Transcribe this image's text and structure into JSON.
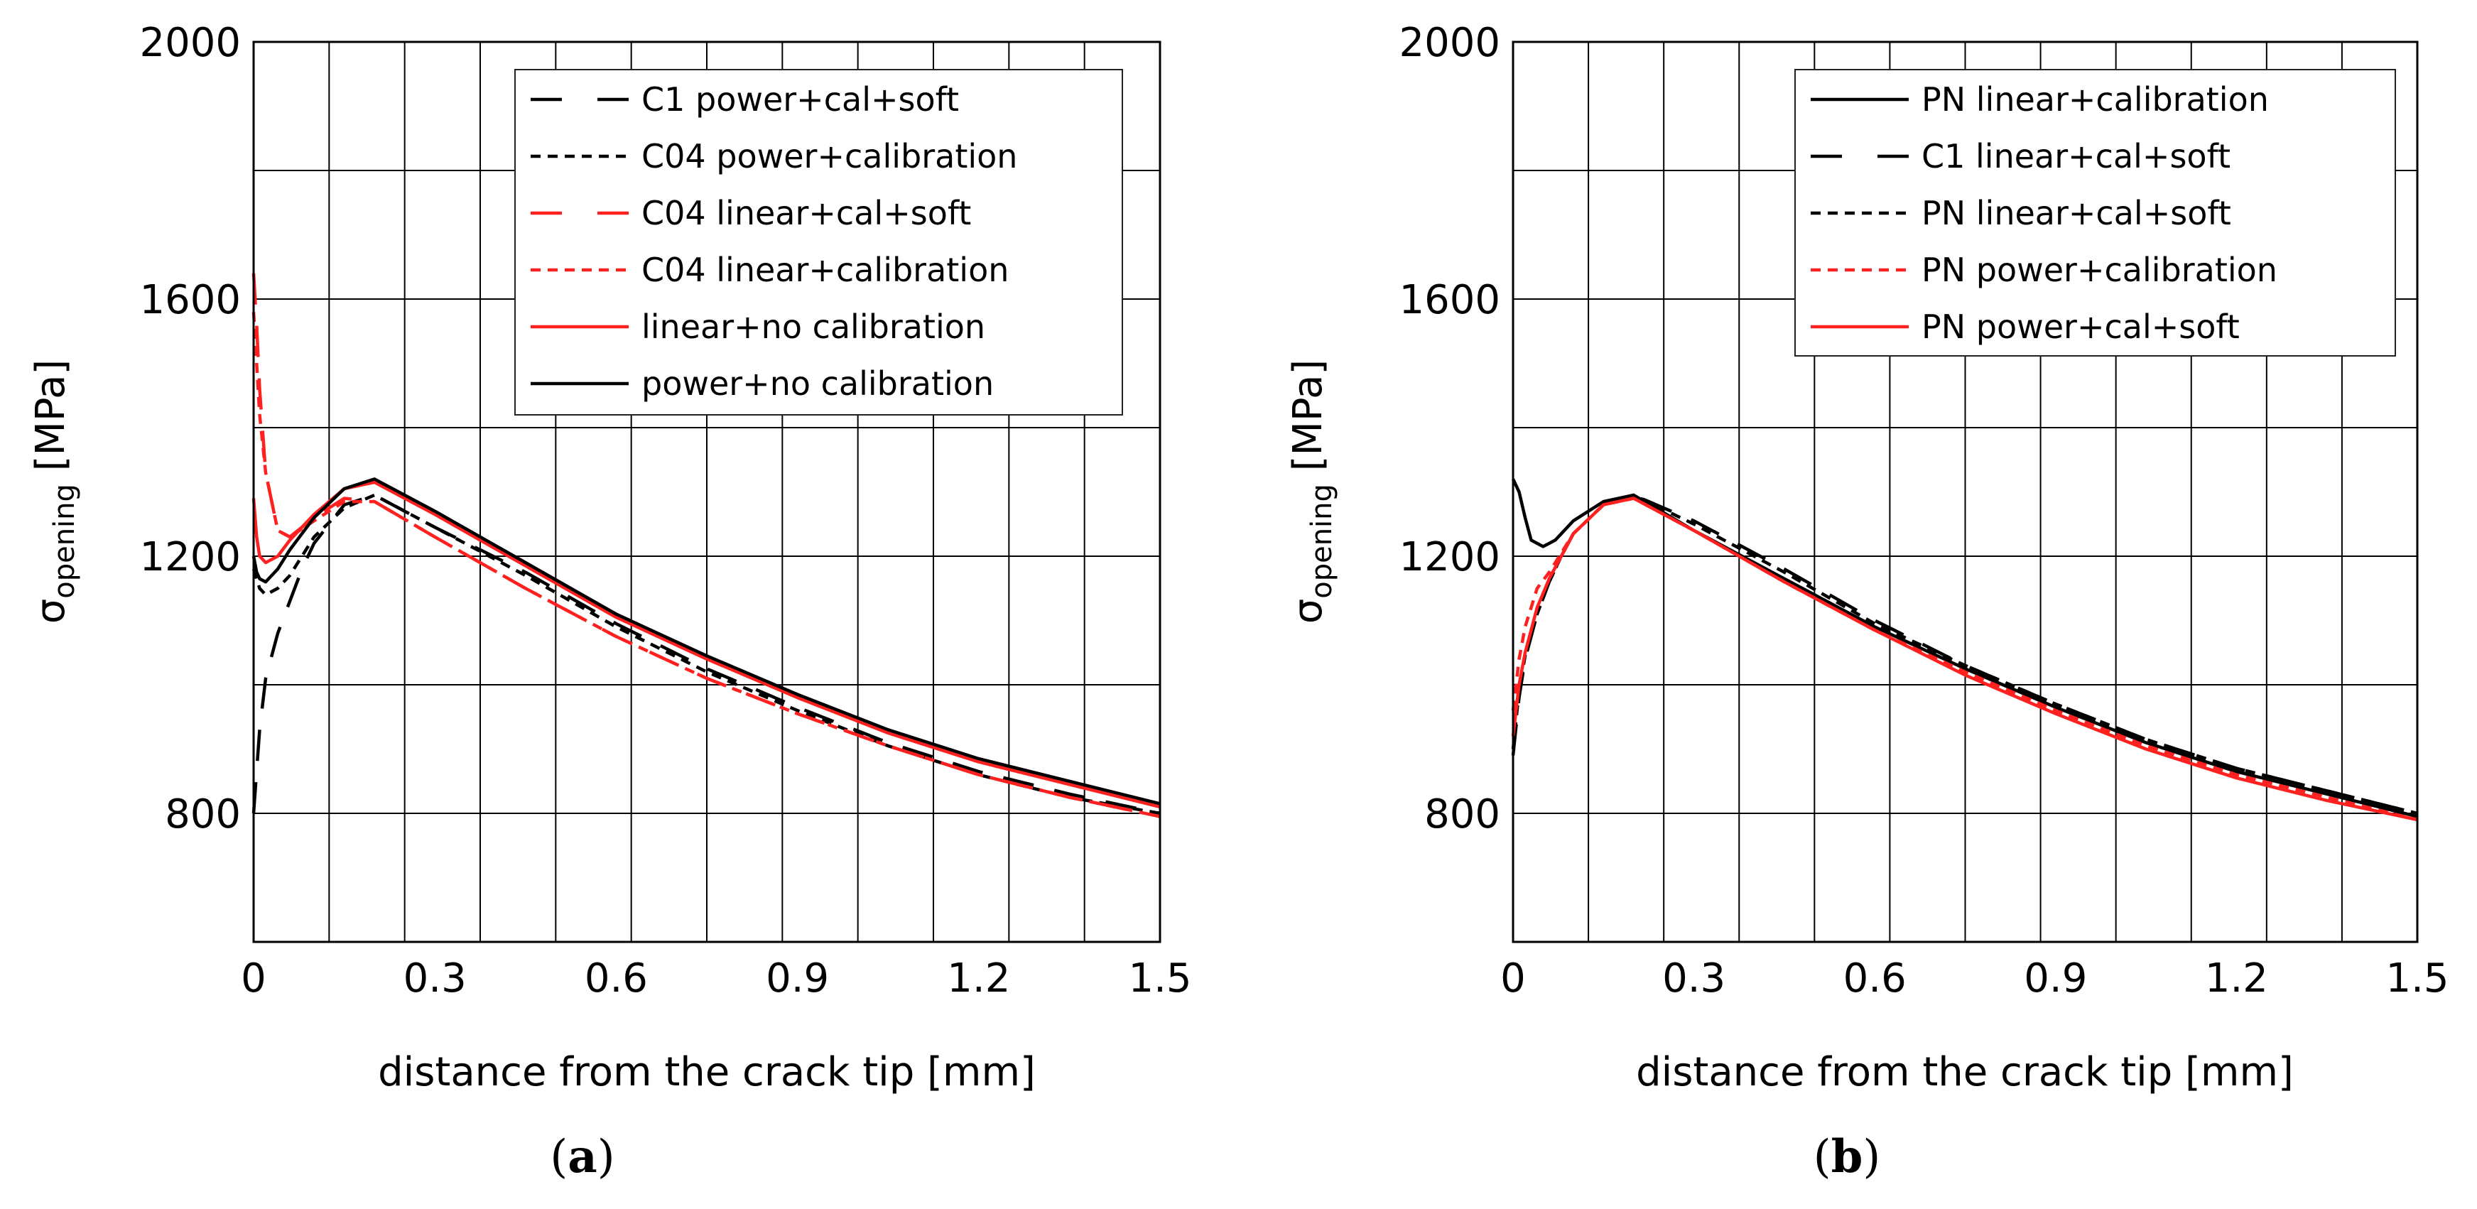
{
  "chart_data": [
    {
      "panel": "a",
      "caption": [
        "(",
        "a",
        ")"
      ],
      "type": "line",
      "xlabel": "distance from the crack tip [mm]",
      "ylabel_main": "σ",
      "ylabel_sub": "opening",
      "ylabel_unit": " [MPa]",
      "xlim": [
        0,
        1.5
      ],
      "ylim": [
        600,
        2000
      ],
      "xticks": [
        0,
        0.3,
        0.6,
        0.9,
        1.2,
        1.5
      ],
      "xtick_labels": [
        "0",
        "0.3",
        "0.6",
        "0.9",
        "1.2",
        "1.5"
      ],
      "yticks": [
        800,
        1200,
        1600,
        2000
      ],
      "ytick_labels": [
        "800",
        "1200",
        "1600",
        "2000"
      ],
      "grid": true,
      "legend_position": "top-right",
      "series": [
        {
          "name": "C1 power+cal+soft",
          "color": "#000000",
          "dash": "long-dash",
          "x": [
            0,
            0.01,
            0.02,
            0.04,
            0.06,
            0.08,
            0.1,
            0.15,
            0.2,
            0.3,
            0.45,
            0.6,
            0.75,
            0.9,
            1.05,
            1.2,
            1.35,
            1.5
          ],
          "y": [
            800,
            930,
            1010,
            1080,
            1130,
            1180,
            1220,
            1280,
            1295,
            1245,
            1175,
            1095,
            1025,
            965,
            910,
            865,
            830,
            800
          ]
        },
        {
          "name": "C04 power+calibration",
          "color": "#000000",
          "dash": "short-dash",
          "x": [
            0,
            0.01,
            0.02,
            0.04,
            0.06,
            0.08,
            0.1,
            0.15,
            0.2,
            0.3,
            0.45,
            0.6,
            0.75,
            0.9,
            1.05,
            1.2,
            1.35,
            1.5
          ],
          "y": [
            1180,
            1150,
            1140,
            1150,
            1170,
            1200,
            1230,
            1275,
            1295,
            1245,
            1170,
            1090,
            1020,
            960,
            905,
            860,
            825,
            800
          ]
        },
        {
          "name": "C04 linear+cal+soft",
          "color": "#ff2020",
          "dash": "long-dash",
          "x": [
            0,
            0.005,
            0.01,
            0.02,
            0.04,
            0.06,
            0.1,
            0.15,
            0.2,
            0.3,
            0.45,
            0.6,
            0.75,
            0.9,
            1.05,
            1.2,
            1.35,
            1.5
          ],
          "y": [
            1640,
            1560,
            1460,
            1330,
            1240,
            1230,
            1260,
            1290,
            1285,
            1230,
            1150,
            1075,
            1010,
            955,
            905,
            860,
            825,
            795
          ]
        },
        {
          "name": "C04 linear+calibration",
          "color": "#ff2020",
          "dash": "short-dash",
          "x": [
            0,
            0.005,
            0.01,
            0.02,
            0.04,
            0.06,
            0.1,
            0.15,
            0.2,
            0.3,
            0.45,
            0.6,
            0.75,
            0.9,
            1.05,
            1.2,
            1.35,
            1.5
          ],
          "y": [
            1580,
            1500,
            1420,
            1330,
            1240,
            1230,
            1255,
            1285,
            1285,
            1230,
            1150,
            1075,
            1010,
            955,
            905,
            860,
            825,
            795
          ]
        },
        {
          "name": "linear+no calibration",
          "color": "#ff2020",
          "dash": "solid",
          "x": [
            0,
            0.005,
            0.01,
            0.02,
            0.04,
            0.06,
            0.1,
            0.15,
            0.2,
            0.3,
            0.45,
            0.6,
            0.75,
            0.9,
            1.05,
            1.2,
            1.35,
            1.5
          ],
          "y": [
            1290,
            1230,
            1200,
            1190,
            1200,
            1225,
            1265,
            1305,
            1315,
            1265,
            1185,
            1105,
            1040,
            980,
            925,
            880,
            845,
            810
          ]
        },
        {
          "name": "power+no calibration",
          "color": "#000000",
          "dash": "solid",
          "x": [
            0,
            0.005,
            0.01,
            0.02,
            0.04,
            0.06,
            0.1,
            0.15,
            0.2,
            0.3,
            0.45,
            0.6,
            0.75,
            0.9,
            1.05,
            1.2,
            1.35,
            1.5
          ],
          "y": [
            1200,
            1175,
            1165,
            1160,
            1180,
            1210,
            1260,
            1305,
            1320,
            1270,
            1190,
            1110,
            1045,
            985,
            930,
            885,
            850,
            815
          ]
        }
      ]
    },
    {
      "panel": "b",
      "caption": [
        "(",
        "b",
        ")"
      ],
      "type": "line",
      "xlabel": "distance from the crack tip [mm]",
      "ylabel_main": "σ",
      "ylabel_sub": "opening",
      "ylabel_unit": " [MPa]",
      "xlim": [
        0,
        1.5
      ],
      "ylim": [
        600,
        2000
      ],
      "xticks": [
        0,
        0.3,
        0.6,
        0.9,
        1.2,
        1.5
      ],
      "xtick_labels": [
        "0",
        "0.3",
        "0.6",
        "0.9",
        "1.2",
        "1.5"
      ],
      "yticks": [
        800,
        1200,
        1600,
        2000
      ],
      "ytick_labels": [
        "800",
        "1200",
        "1600",
        "2000"
      ],
      "grid": true,
      "legend_position": "top-right",
      "series": [
        {
          "name": "PN linear+calibration",
          "color": "#000000",
          "dash": "solid",
          "x": [
            0,
            0.01,
            0.02,
            0.03,
            0.05,
            0.07,
            0.1,
            0.15,
            0.2,
            0.3,
            0.45,
            0.6,
            0.75,
            0.9,
            1.05,
            1.2,
            1.35,
            1.5
          ],
          "y": [
            1320,
            1300,
            1260,
            1225,
            1215,
            1225,
            1255,
            1285,
            1295,
            1240,
            1165,
            1090,
            1025,
            965,
            910,
            865,
            830,
            795
          ]
        },
        {
          "name": "C1 linear+cal+soft",
          "color": "#000000",
          "dash": "long-dash",
          "x": [
            0,
            0.01,
            0.02,
            0.04,
            0.06,
            0.08,
            0.1,
            0.15,
            0.2,
            0.3,
            0.45,
            0.6,
            0.75,
            0.9,
            1.05,
            1.2,
            1.35,
            1.5
          ],
          "y": [
            890,
            980,
            1040,
            1110,
            1160,
            1200,
            1235,
            1280,
            1295,
            1255,
            1180,
            1100,
            1030,
            970,
            915,
            870,
            835,
            800
          ]
        },
        {
          "name": "PN linear+cal+soft",
          "color": "#000000",
          "dash": "short-dash",
          "x": [
            0,
            0.01,
            0.02,
            0.04,
            0.06,
            0.08,
            0.1,
            0.15,
            0.2,
            0.3,
            0.45,
            0.6,
            0.75,
            0.9,
            1.05,
            1.2,
            1.35,
            1.5
          ],
          "y": [
            900,
            990,
            1045,
            1110,
            1160,
            1200,
            1235,
            1280,
            1295,
            1250,
            1175,
            1095,
            1030,
            970,
            915,
            870,
            835,
            800
          ]
        },
        {
          "name": "PN power+calibration",
          "color": "#ff2020",
          "dash": "short-dash",
          "x": [
            0,
            0.01,
            0.02,
            0.04,
            0.06,
            0.08,
            0.1,
            0.15,
            0.2,
            0.3,
            0.45,
            0.6,
            0.75,
            0.9,
            1.05,
            1.2,
            1.35,
            1.5
          ],
          "y": [
            960,
            1040,
            1090,
            1150,
            1175,
            1205,
            1235,
            1280,
            1290,
            1240,
            1160,
            1085,
            1020,
            960,
            905,
            860,
            825,
            790
          ]
        },
        {
          "name": "PN power+cal+soft",
          "color": "#ff2020",
          "dash": "solid",
          "x": [
            0,
            0.01,
            0.02,
            0.04,
            0.06,
            0.08,
            0.1,
            0.15,
            0.2,
            0.3,
            0.45,
            0.6,
            0.75,
            0.9,
            1.05,
            1.2,
            1.35,
            1.5
          ],
          "y": [
            920,
            1000,
            1050,
            1120,
            1165,
            1200,
            1235,
            1280,
            1290,
            1240,
            1160,
            1085,
            1015,
            955,
            900,
            855,
            820,
            790
          ]
        }
      ]
    }
  ]
}
